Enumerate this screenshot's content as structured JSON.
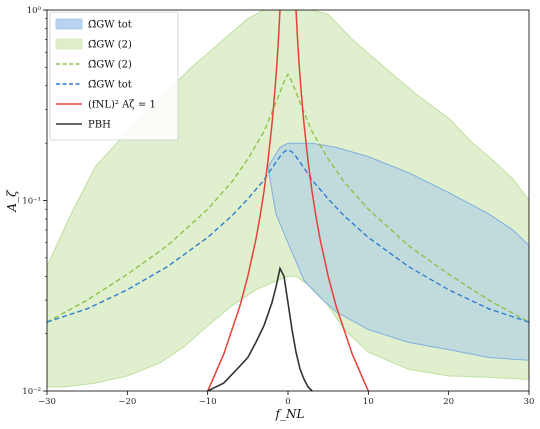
{
  "chart_data": {
    "type": "area",
    "xlabel": "f_NL",
    "ylabel": "A_ζ",
    "xlim": [
      -30,
      30
    ],
    "ylim": [
      0.01,
      1
    ],
    "y_scale": "log",
    "x_ticks": [
      -30,
      -20,
      -10,
      0,
      10,
      20,
      30
    ],
    "x_tick_labels": [
      "−30",
      "−20",
      "−10",
      "0",
      "10",
      "20",
      "30"
    ],
    "y_ticks": [
      0.01,
      0.1,
      1
    ],
    "y_tick_labels": [
      "10⁻²",
      "10⁻¹",
      "10⁰"
    ],
    "legend_position": "top-left",
    "legend": [
      {
        "label": "Ω̄GW tot",
        "style": "fill",
        "color": "#a8c8ea"
      },
      {
        "label": "Ω̄GW (2)",
        "style": "fill",
        "color": "#d6eabc"
      },
      {
        "label": "Ω̄GW (2)",
        "style": "dashed",
        "color": "#8cc24a"
      },
      {
        "label": "Ω̄GW tot",
        "style": "dashed",
        "color": "#2f7fd0"
      },
      {
        "label": "(fNL)² Aζ = 1",
        "style": "line",
        "color": "#e8413c"
      },
      {
        "label": "PBH",
        "style": "line",
        "color": "#333333"
      }
    ],
    "series": [
      {
        "name": "Ω̄GW tot (region)",
        "kind": "band",
        "color": "#a8c8ea",
        "upper": {
          "x": [
            -2.5,
            -1,
            0,
            1,
            3,
            6,
            10,
            15,
            20,
            25,
            28,
            30
          ],
          "y": [
            0.15,
            0.19,
            0.2,
            0.2,
            0.2,
            0.19,
            0.17,
            0.14,
            0.11,
            0.085,
            0.07,
            0.058
          ]
        },
        "lower": {
          "x": [
            30,
            25,
            20,
            15,
            10,
            6,
            4,
            2,
            0,
            -1.5,
            -2.5
          ],
          "y": [
            0.0145,
            0.015,
            0.0165,
            0.018,
            0.021,
            0.026,
            0.031,
            0.038,
            0.06,
            0.085,
            0.15
          ]
        }
      },
      {
        "name": "Ω̄GW (2) (region)",
        "kind": "band",
        "color": "#d6eabc",
        "upper": {
          "x": [
            -30,
            -27,
            -24,
            -20,
            -16,
            -12,
            -8,
            -5,
            -3,
            -1,
            0,
            1,
            3,
            5,
            8,
            12,
            16,
            20,
            23,
            25,
            28,
            30
          ],
          "y": [
            0.045,
            0.085,
            0.15,
            0.23,
            0.34,
            0.5,
            0.7,
            0.9,
            1.0,
            1.0,
            1.0,
            1.0,
            1.0,
            0.95,
            0.7,
            0.5,
            0.36,
            0.27,
            0.2,
            0.17,
            0.13,
            0.1
          ]
        },
        "lower": {
          "x": [
            30,
            25,
            20,
            15,
            10,
            7,
            5,
            3,
            1,
            0,
            -2,
            -4,
            -7,
            -10,
            -13,
            -16,
            -20,
            -24,
            -28,
            -30
          ],
          "y": [
            0.0115,
            0.0118,
            0.012,
            0.013,
            0.016,
            0.021,
            0.028,
            0.035,
            0.04,
            0.04,
            0.037,
            0.034,
            0.028,
            0.022,
            0.017,
            0.014,
            0.012,
            0.011,
            0.0105,
            0.0105
          ]
        }
      },
      {
        "name": "Ω̄GW (2)",
        "kind": "dashed",
        "color": "#8cc24a",
        "x": [
          -30,
          -25,
          -20,
          -15,
          -10,
          -7,
          -5,
          -3,
          -2,
          -1,
          -0.5,
          0,
          0.5,
          1,
          2,
          3,
          5,
          7,
          10,
          15,
          20,
          25,
          30
        ],
        "y": [
          0.023,
          0.03,
          0.041,
          0.058,
          0.09,
          0.125,
          0.165,
          0.23,
          0.29,
          0.37,
          0.42,
          0.46,
          0.42,
          0.37,
          0.29,
          0.23,
          0.165,
          0.125,
          0.09,
          0.058,
          0.041,
          0.03,
          0.023
        ]
      },
      {
        "name": "Ω̄GW tot",
        "kind": "dashed",
        "color": "#2f7fd0",
        "x": [
          -30,
          -25,
          -20,
          -15,
          -10,
          -7,
          -5,
          -3,
          -2,
          -1,
          -0.5,
          0,
          0.5,
          1,
          2,
          3,
          5,
          7,
          10,
          15,
          20,
          25,
          30
        ],
        "y": [
          0.023,
          0.027,
          0.034,
          0.045,
          0.064,
          0.083,
          0.102,
          0.128,
          0.148,
          0.17,
          0.18,
          0.185,
          0.18,
          0.17,
          0.148,
          0.128,
          0.102,
          0.083,
          0.064,
          0.045,
          0.034,
          0.027,
          0.023
        ]
      },
      {
        "name": "(fNL)² Aζ = 1",
        "kind": "line",
        "color": "#e8413c",
        "x": [
          -10,
          -8,
          -6,
          -5,
          -4,
          -3.5,
          -3,
          -2.5,
          -2,
          -1.8,
          -1.6,
          -1.4,
          -1.2,
          -1.0
        ],
        "y": [
          0.01,
          0.0156,
          0.0278,
          0.04,
          0.0625,
          0.0816,
          0.111,
          0.16,
          0.25,
          0.309,
          0.391,
          0.51,
          0.694,
          1.0
        ],
        "mirror": true
      },
      {
        "name": "PBH",
        "kind": "line",
        "color": "#333333",
        "x": [
          -10,
          -8,
          -6,
          -5,
          -4,
          -3,
          -2,
          -1.5,
          -1,
          -0.5,
          0,
          0.5,
          1,
          1.5,
          2,
          2.5,
          3
        ],
        "y": [
          0.01,
          0.011,
          0.0135,
          0.015,
          0.018,
          0.022,
          0.029,
          0.035,
          0.044,
          0.04,
          0.029,
          0.021,
          0.016,
          0.013,
          0.0115,
          0.0105,
          0.01
        ]
      }
    ]
  }
}
